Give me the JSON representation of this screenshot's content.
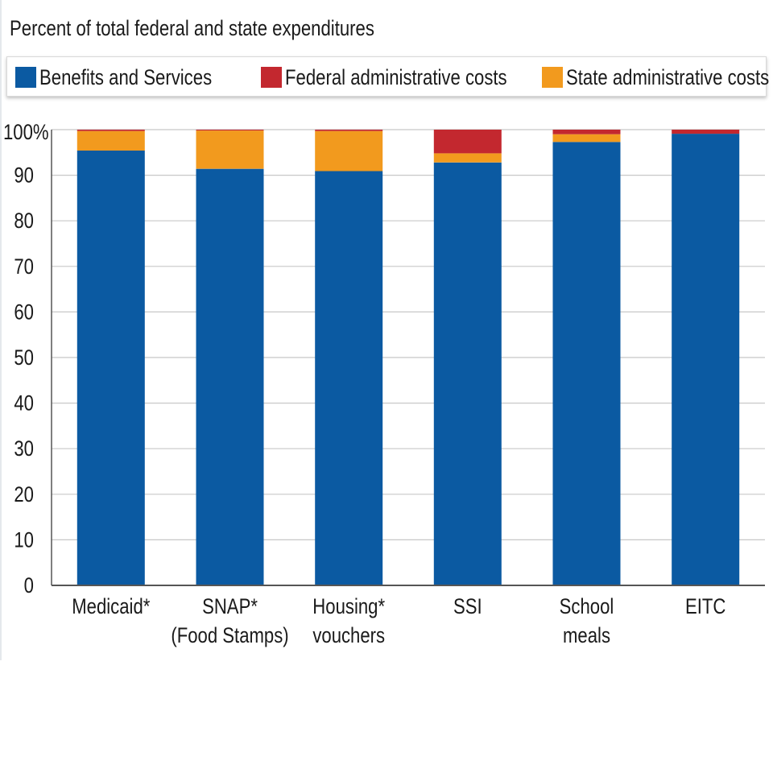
{
  "chart_data": {
    "type": "bar",
    "stacked": true,
    "subtitle": "Percent of total federal and state expenditures",
    "categories": [
      [
        "Medicaid*"
      ],
      [
        "SNAP*",
        "(Food Stamps)"
      ],
      [
        "Housing*",
        "vouchers"
      ],
      [
        "SSI"
      ],
      [
        "School",
        "meals"
      ],
      [
        "EITC"
      ]
    ],
    "series": [
      {
        "name": "Benefits and Services",
        "color": "#0b5aa2",
        "values": [
          95.4,
          91.4,
          90.9,
          92.8,
          97.3,
          99.1
        ]
      },
      {
        "name": "State administrative costs",
        "color": "#f29a1e",
        "values": [
          4.3,
          8.4,
          8.8,
          2.0,
          1.7,
          0.0
        ]
      },
      {
        "name": "Federal administrative costs",
        "color": "#c3282f",
        "values": [
          0.3,
          0.2,
          0.3,
          5.2,
          1.0,
          0.9
        ]
      }
    ],
    "legend_order": [
      "Benefits and Services",
      "Federal administrative costs",
      "State administrative costs"
    ],
    "legend_placement": "top",
    "ylim": [
      0,
      100
    ],
    "yticks": [
      "0",
      "10",
      "20",
      "30",
      "40",
      "50",
      "60",
      "70",
      "80",
      "90",
      "100%"
    ],
    "grid": true
  }
}
